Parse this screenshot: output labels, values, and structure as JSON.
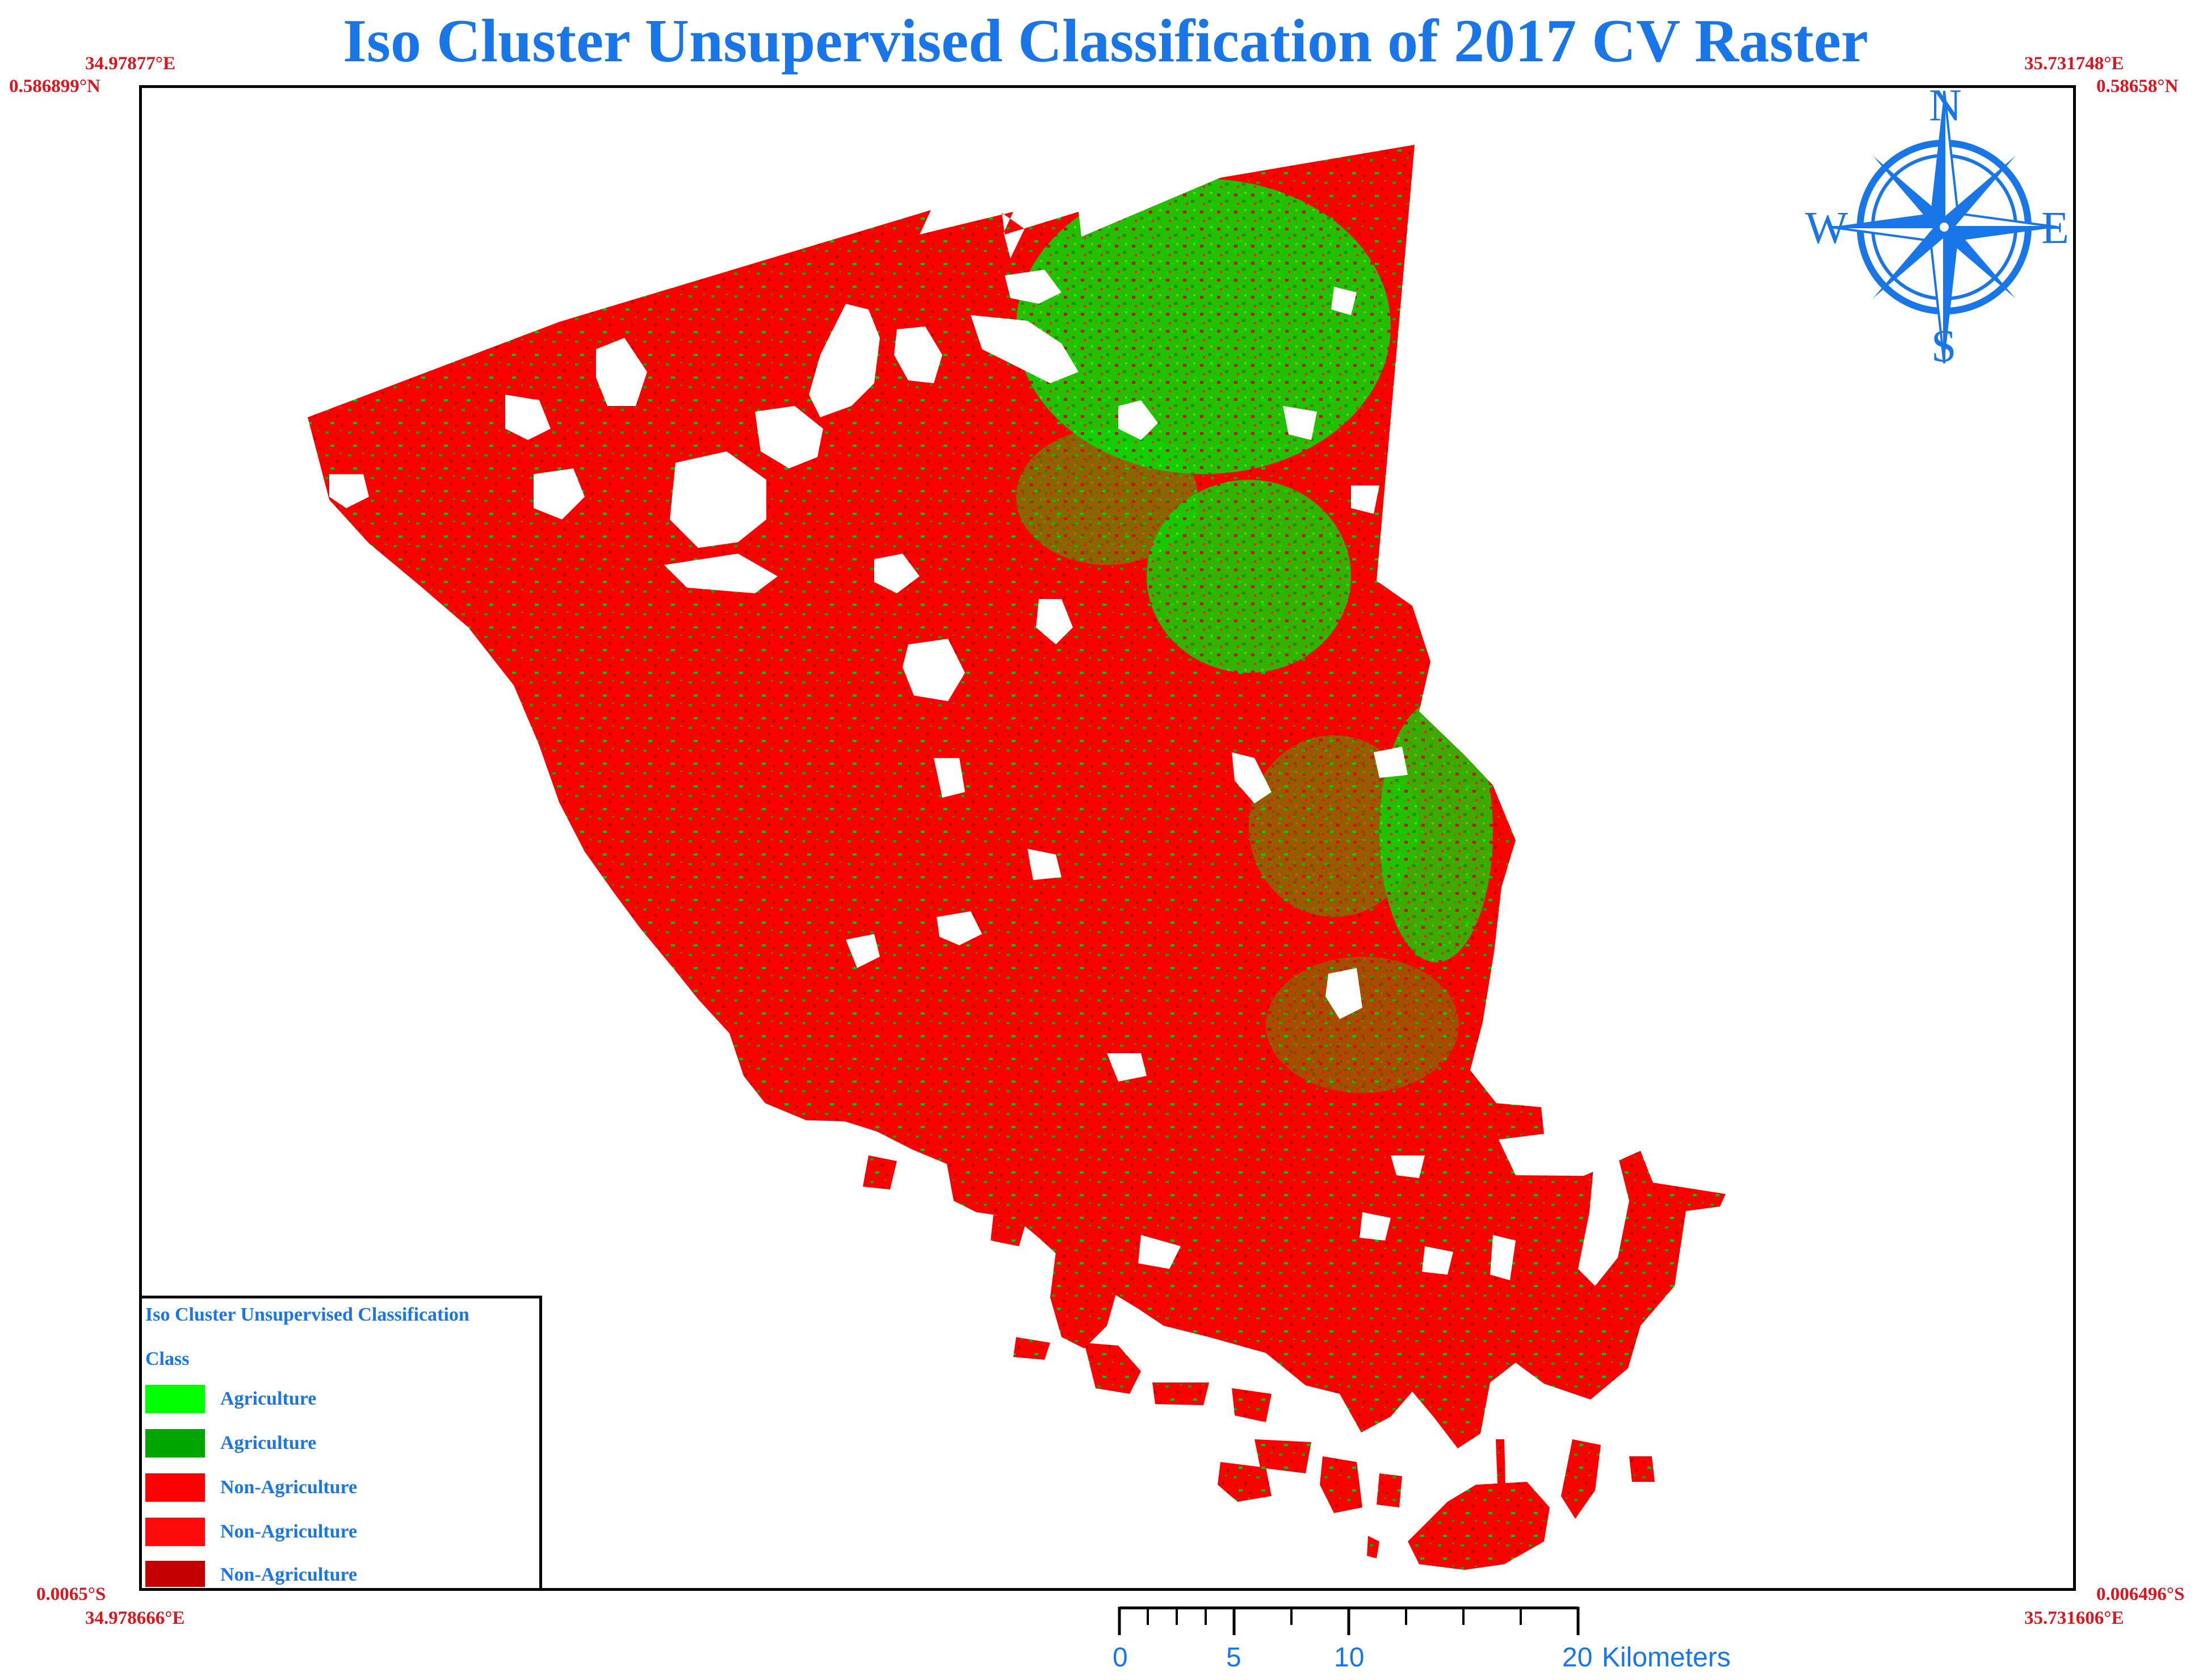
{
  "title": "Iso Cluster Unsupervised Classification of 2017 CV Raster",
  "coordinates": {
    "top_left_lon": "34.97877°E",
    "top_left_lat": "0.586899°N",
    "top_right_lon": "35.731748°E",
    "top_right_lat": "0.58658°N",
    "bottom_left_lat": "0.0065°S",
    "bottom_left_lon": "34.978666°E",
    "bottom_right_lat": "0.006496°S",
    "bottom_right_lon": "35.731606°E"
  },
  "legend": {
    "title": "Iso Cluster Unsupervised Classification",
    "subtitle": "Class",
    "items": [
      {
        "label": "Agriculture",
        "color": "#00ff00"
      },
      {
        "label": "Agriculture",
        "color": "#00a600"
      },
      {
        "label": "Non-Agriculture",
        "color": "#ff0000"
      },
      {
        "label": "Non-Agriculture",
        "color": "#ff0a0a"
      },
      {
        "label": "Non-Agriculture",
        "color": "#c40000"
      }
    ]
  },
  "compass": {
    "north": "N",
    "south": "S",
    "east": "E",
    "west": "W"
  },
  "scalebar": {
    "labels": [
      "0",
      "5",
      "10",
      "20"
    ],
    "unit": "Kilometers"
  },
  "colors": {
    "accent": "#1976e8",
    "coordinate_text": "#e0141c"
  }
}
